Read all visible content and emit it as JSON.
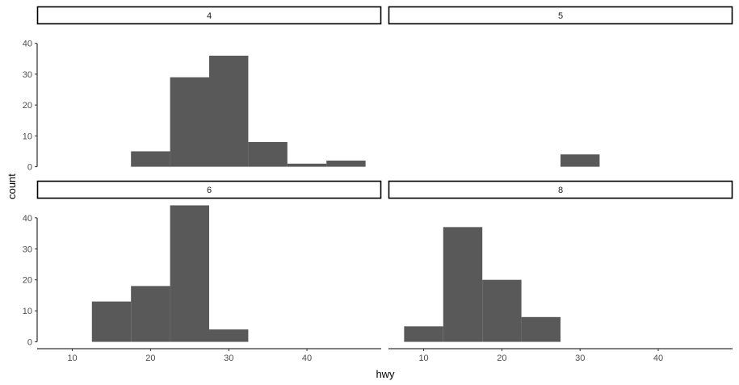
{
  "chart_data": {
    "type": "bar",
    "subtype": "histogram-facet-wrap",
    "xlabel": "hwy",
    "ylabel": "count",
    "xlim": [
      5.5,
      49.5
    ],
    "ylim": [
      -2.2,
      46.2
    ],
    "x_ticks": [
      10,
      20,
      30,
      40
    ],
    "y_ticks": [
      0,
      10,
      20,
      30,
      40
    ],
    "binwidth": 5,
    "bar_color": "#595959",
    "grid": false,
    "facets": [
      {
        "label": "4",
        "bins": [
          {
            "x0": 17.5,
            "x1": 22.5,
            "count": 5
          },
          {
            "x0": 22.5,
            "x1": 27.5,
            "count": 29
          },
          {
            "x0": 27.5,
            "x1": 32.5,
            "count": 36
          },
          {
            "x0": 32.5,
            "x1": 37.5,
            "count": 8
          },
          {
            "x0": 37.5,
            "x1": 42.5,
            "count": 1
          },
          {
            "x0": 42.5,
            "x1": 47.5,
            "count": 2
          }
        ]
      },
      {
        "label": "5",
        "bins": [
          {
            "x0": 27.5,
            "x1": 32.5,
            "count": 4
          }
        ]
      },
      {
        "label": "6",
        "bins": [
          {
            "x0": 12.5,
            "x1": 17.5,
            "count": 13
          },
          {
            "x0": 17.5,
            "x1": 22.5,
            "count": 18
          },
          {
            "x0": 22.5,
            "x1": 27.5,
            "count": 44
          },
          {
            "x0": 27.5,
            "x1": 32.5,
            "count": 4
          }
        ]
      },
      {
        "label": "8",
        "bins": [
          {
            "x0": 7.5,
            "x1": 12.5,
            "count": 5
          },
          {
            "x0": 12.5,
            "x1": 17.5,
            "count": 37
          },
          {
            "x0": 17.5,
            "x1": 22.5,
            "count": 20
          },
          {
            "x0": 22.5,
            "x1": 27.5,
            "count": 8
          }
        ]
      }
    ]
  }
}
